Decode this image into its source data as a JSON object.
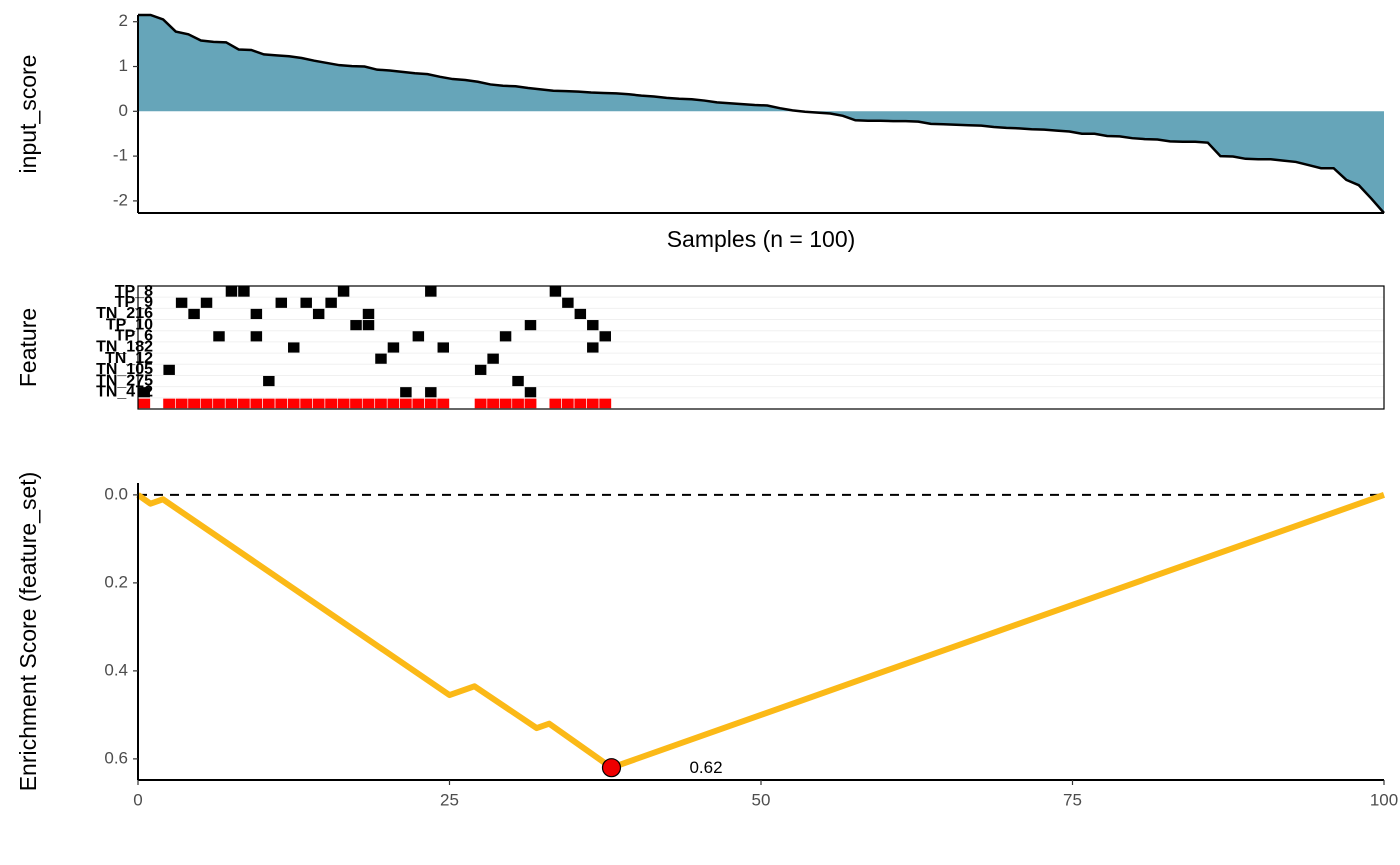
{
  "chart_data": [
    {
      "type": "area",
      "ylabel": "input_score",
      "xlabel": "Samples (n = 100)",
      "color": "#66a5b9",
      "line_color": "#000000",
      "ylim": [
        -2.27,
        2.15
      ],
      "yticks": [
        -2,
        -1,
        0,
        1,
        2
      ],
      "values": [
        2.15,
        2.15,
        2.05,
        1.78,
        1.72,
        1.58,
        1.55,
        1.54,
        1.38,
        1.37,
        1.27,
        1.25,
        1.23,
        1.19,
        1.13,
        1.08,
        1.03,
        1.01,
        1.0,
        0.93,
        0.91,
        0.88,
        0.85,
        0.83,
        0.77,
        0.72,
        0.7,
        0.66,
        0.6,
        0.57,
        0.56,
        0.52,
        0.49,
        0.46,
        0.45,
        0.44,
        0.42,
        0.41,
        0.4,
        0.38,
        0.35,
        0.33,
        0.3,
        0.28,
        0.27,
        0.24,
        0.2,
        0.18,
        0.16,
        0.14,
        0.13,
        0.07,
        0.02,
        -0.01,
        -0.03,
        -0.05,
        -0.1,
        -0.2,
        -0.21,
        -0.21,
        -0.22,
        -0.22,
        -0.23,
        -0.28,
        -0.29,
        -0.3,
        -0.31,
        -0.32,
        -0.35,
        -0.37,
        -0.38,
        -0.4,
        -0.41,
        -0.43,
        -0.45,
        -0.5,
        -0.5,
        -0.55,
        -0.56,
        -0.6,
        -0.62,
        -0.63,
        -0.67,
        -0.68,
        -0.68,
        -0.7,
        -1.0,
        -1.01,
        -1.06,
        -1.07,
        -1.07,
        -1.1,
        -1.13,
        -1.2,
        -1.27,
        -1.27,
        -1.53,
        -1.65,
        -1.95,
        -2.27
      ]
    },
    {
      "type": "tile",
      "ylabel": "Feature",
      "xlim": [
        0,
        100
      ],
      "color": "#000000",
      "set_color": "#ff0000",
      "rows": [
        {
          "name": "TP_8",
          "hits": [
            7,
            8,
            16,
            23,
            33
          ]
        },
        {
          "name": "TP_9",
          "hits": [
            3,
            5,
            11,
            13,
            15,
            34
          ]
        },
        {
          "name": "TN_216",
          "hits": [
            4,
            9,
            14,
            18,
            35
          ]
        },
        {
          "name": "TP_10",
          "hits": [
            17,
            18,
            31,
            36
          ]
        },
        {
          "name": "TP_6",
          "hits": [
            6,
            9,
            22,
            29,
            37
          ]
        },
        {
          "name": "TN_182",
          "hits": [
            12,
            20,
            24,
            36
          ]
        },
        {
          "name": "TN_12",
          "hits": [
            19,
            28
          ]
        },
        {
          "name": "TN_105",
          "hits": [
            2,
            27
          ]
        },
        {
          "name": "TN_275",
          "hits": [
            10,
            30
          ]
        },
        {
          "name": "TN_472",
          "hits": [
            0,
            21,
            23,
            31
          ]
        }
      ],
      "set_hits": [
        0,
        2,
        3,
        4,
        5,
        6,
        7,
        8,
        9,
        10,
        11,
        12,
        13,
        14,
        15,
        16,
        17,
        18,
        19,
        20,
        21,
        22,
        23,
        24,
        27,
        28,
        29,
        30,
        31,
        33,
        34,
        35,
        36,
        37
      ]
    },
    {
      "type": "line",
      "ylabel": "Enrichment Score (feature_set)",
      "color": "#fbb917",
      "xlim": [
        0,
        100
      ],
      "xticks": [
        0,
        25,
        50,
        75,
        100
      ],
      "ylim": [
        -0.027,
        0.648
      ],
      "reverse_y": true,
      "yticks": [
        {
          "value": 0,
          "label": "0.0"
        },
        0.2,
        0.4,
        0.6
      ],
      "hline": 0,
      "x": [
        0,
        1,
        2,
        25,
        27,
        32,
        33,
        38,
        100
      ],
      "values": [
        0,
        0.02,
        0.01,
        0.455,
        0.435,
        0.53,
        0.52,
        0.62,
        0
      ],
      "peak": {
        "x": 38,
        "value": 0.62,
        "color": "#ee0000"
      }
    }
  ]
}
